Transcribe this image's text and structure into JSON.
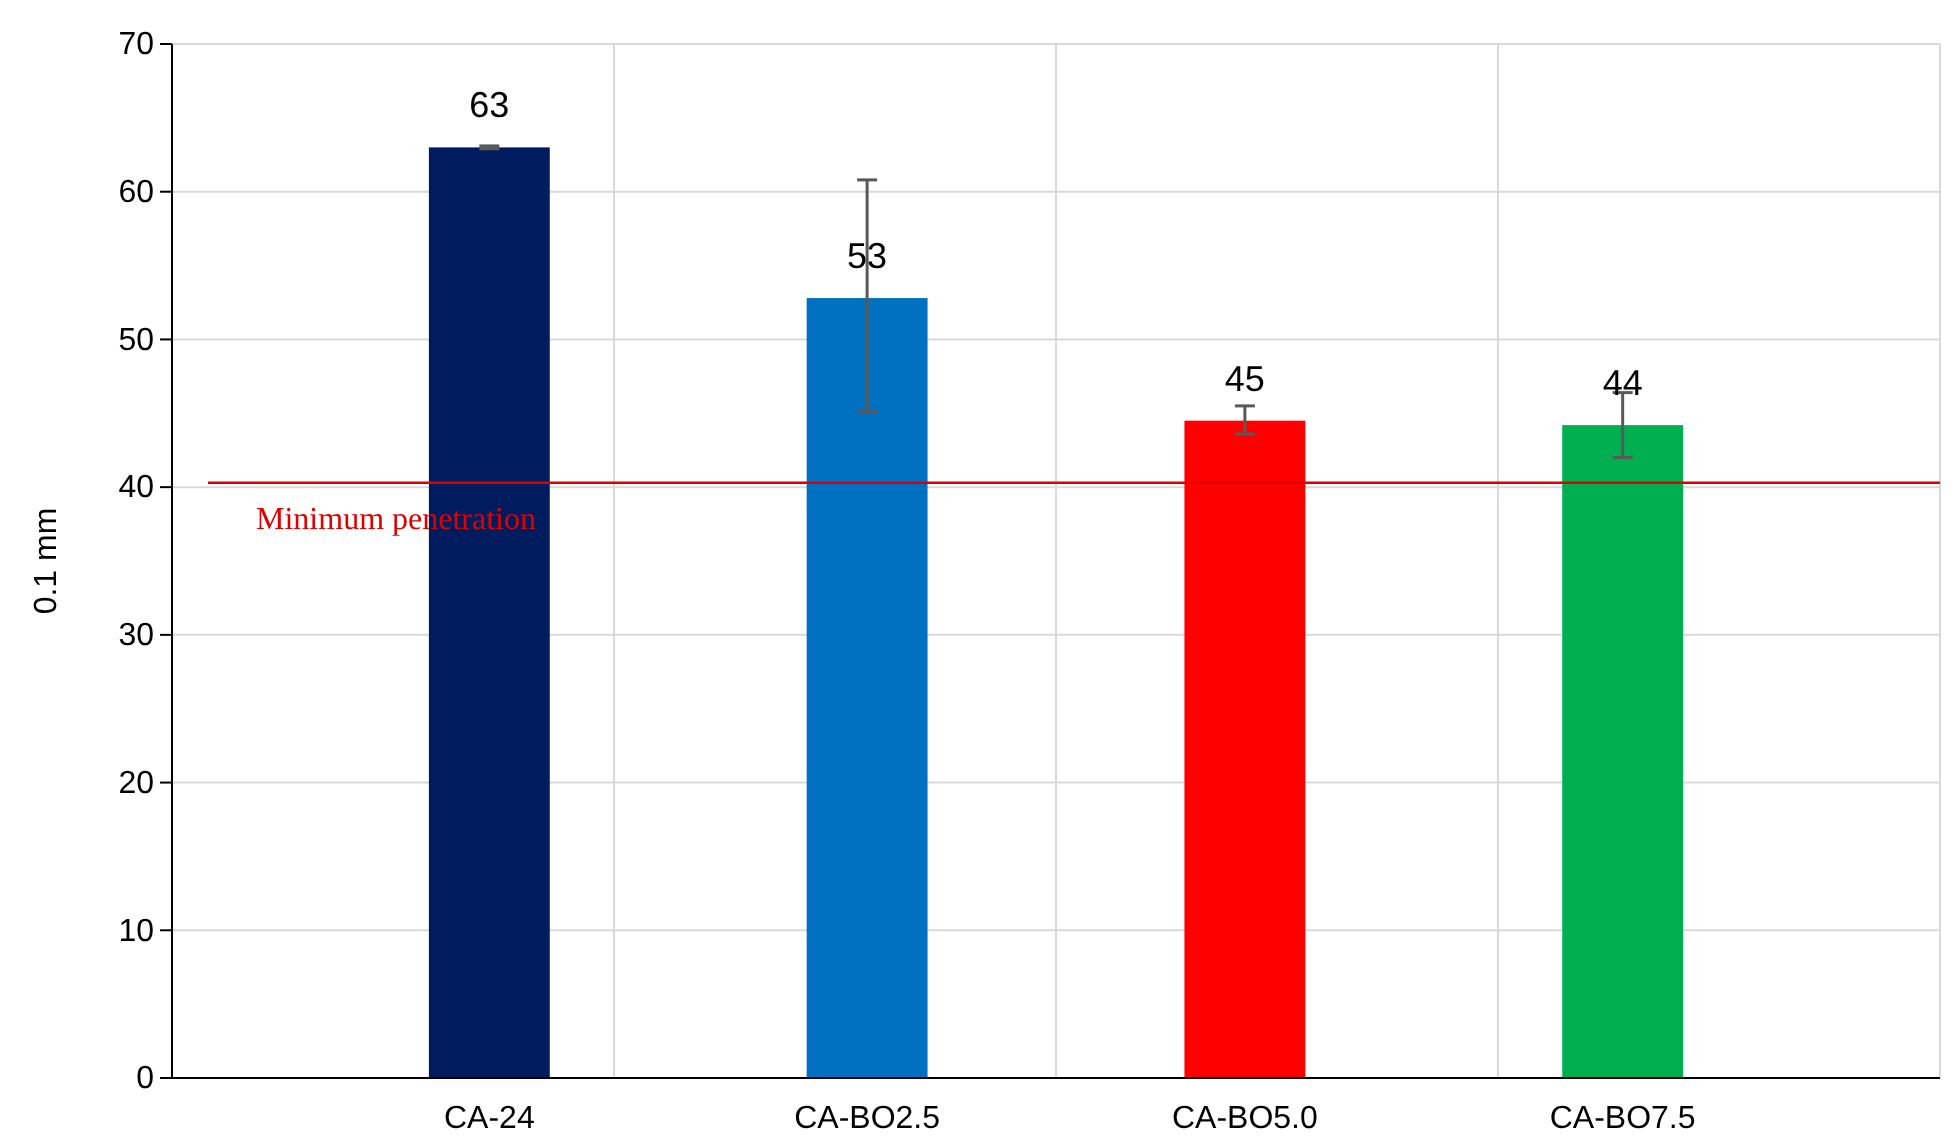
{
  "chart_data": {
    "type": "bar",
    "ylabel": "0.1 mm",
    "categories": [
      "CA-24",
      "CA-BO2.5",
      "CA-BO5.0",
      "CA-BO7.5"
    ],
    "values": [
      63,
      52.8,
      44.5,
      44.2
    ],
    "colors": [
      "#001c5f",
      "#0070c0",
      "#ff0000",
      "#00b050"
    ],
    "value_labels": [
      "63",
      "53",
      "45",
      "44"
    ],
    "errors": [
      [
        62.9,
        63.1
      ],
      [
        45.1,
        60.8
      ],
      [
        43.6,
        45.5
      ],
      [
        42,
        46.4
      ]
    ],
    "ylim": [
      0,
      70
    ],
    "yticks": [
      0,
      10,
      20,
      30,
      40,
      50,
      60,
      70
    ],
    "grid": true,
    "ref_lines": [
      {
        "axis": "y",
        "value": 40.3,
        "label": "Minimum penetration",
        "color": "#e00000"
      }
    ]
  }
}
